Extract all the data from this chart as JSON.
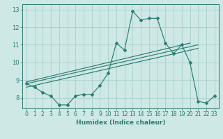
{
  "xlabel": "Humidex (Indice chaleur)",
  "background_color": "#cde8e5",
  "grid_color": "#aacfcc",
  "line_color": "#2e7d72",
  "hours": [
    0,
    1,
    2,
    3,
    4,
    5,
    6,
    7,
    8,
    9,
    10,
    11,
    12,
    13,
    14,
    15,
    16,
    17,
    18,
    19,
    20,
    21,
    22,
    23
  ],
  "humidex": [
    8.8,
    8.6,
    8.3,
    8.1,
    7.6,
    7.6,
    8.1,
    8.2,
    8.2,
    8.7,
    9.4,
    11.1,
    10.7,
    12.9,
    12.4,
    12.5,
    12.5,
    11.1,
    10.5,
    11.0,
    10.0,
    7.8,
    7.7,
    8.1
  ],
  "ylim": [
    7.4,
    13.3
  ],
  "xlim": [
    -0.5,
    23.5
  ],
  "yticks": [
    8,
    9,
    10,
    11,
    12,
    13
  ],
  "xticks": [
    0,
    1,
    2,
    3,
    4,
    5,
    6,
    7,
    8,
    9,
    10,
    11,
    12,
    13,
    14,
    15,
    16,
    17,
    18,
    19,
    20,
    21,
    22,
    23
  ],
  "trend1_x": [
    0,
    21
  ],
  "trend1_y": [
    8.8,
    11.0
  ],
  "trend2_x": [
    0,
    21
  ],
  "trend2_y": [
    8.6,
    10.8
  ],
  "trend3_x": [
    0,
    20
  ],
  "trend3_y": [
    8.9,
    11.1
  ]
}
